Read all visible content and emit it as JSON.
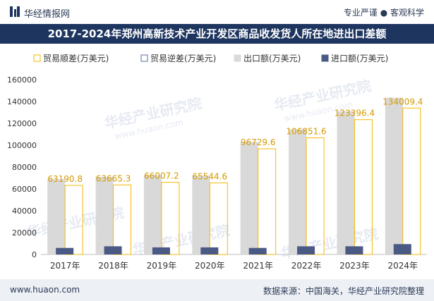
{
  "header": {
    "site_name": "华经情报网",
    "tagline": "专业严谨 ● 客观科学"
  },
  "footer": {
    "website": "www.huaon.com",
    "source": "数据来源：中国海关，华经产业研究院整理"
  },
  "watermark": {
    "name": "华经产业研究院",
    "url": "www.huaon.com"
  },
  "chart_data": {
    "type": "bar",
    "title": "2017-2024年郑州高新技术产业开发区商品收发货人所在地进出口差额",
    "categories": [
      "2017年",
      "2018年",
      "2019年",
      "2020年",
      "2021年",
      "2022年",
      "2023年",
      "2024年"
    ],
    "series": [
      {
        "name": "贸易顺差(万美元)",
        "values": [
          63190.8,
          63665.3,
          66007.2,
          65544.6,
          96729.6,
          106851.6,
          123396.4,
          134009.4
        ],
        "color": "#f5b800",
        "style": "outline"
      },
      {
        "name": "贸易逆差(万美元)",
        "values": [
          0,
          0,
          0,
          0,
          0,
          0,
          0,
          0
        ],
        "color": "#5b6fa0",
        "style": "outline"
      },
      {
        "name": "出口额(万美元)",
        "values": [
          69000,
          71000,
          72500,
          72000,
          103000,
          114500,
          131000,
          143500
        ],
        "color": "#d9d9d9"
      },
      {
        "name": "进口额(万美元)",
        "values": [
          6000,
          7500,
          6500,
          6500,
          6000,
          7500,
          7500,
          9500
        ],
        "color": "#4a5a85"
      }
    ],
    "data_labels": [
      "63190.8",
      "63665.3",
      "66007.2",
      "65544.6",
      "96729.6",
      "106851.6",
      "123396.4",
      "134009.4"
    ],
    "yticks": [
      "0",
      "20000",
      "40000",
      "60000",
      "80000",
      "100000",
      "120000",
      "140000",
      "160000"
    ],
    "ylim": [
      0,
      160000
    ],
    "legend_position": "top",
    "grid": false
  }
}
